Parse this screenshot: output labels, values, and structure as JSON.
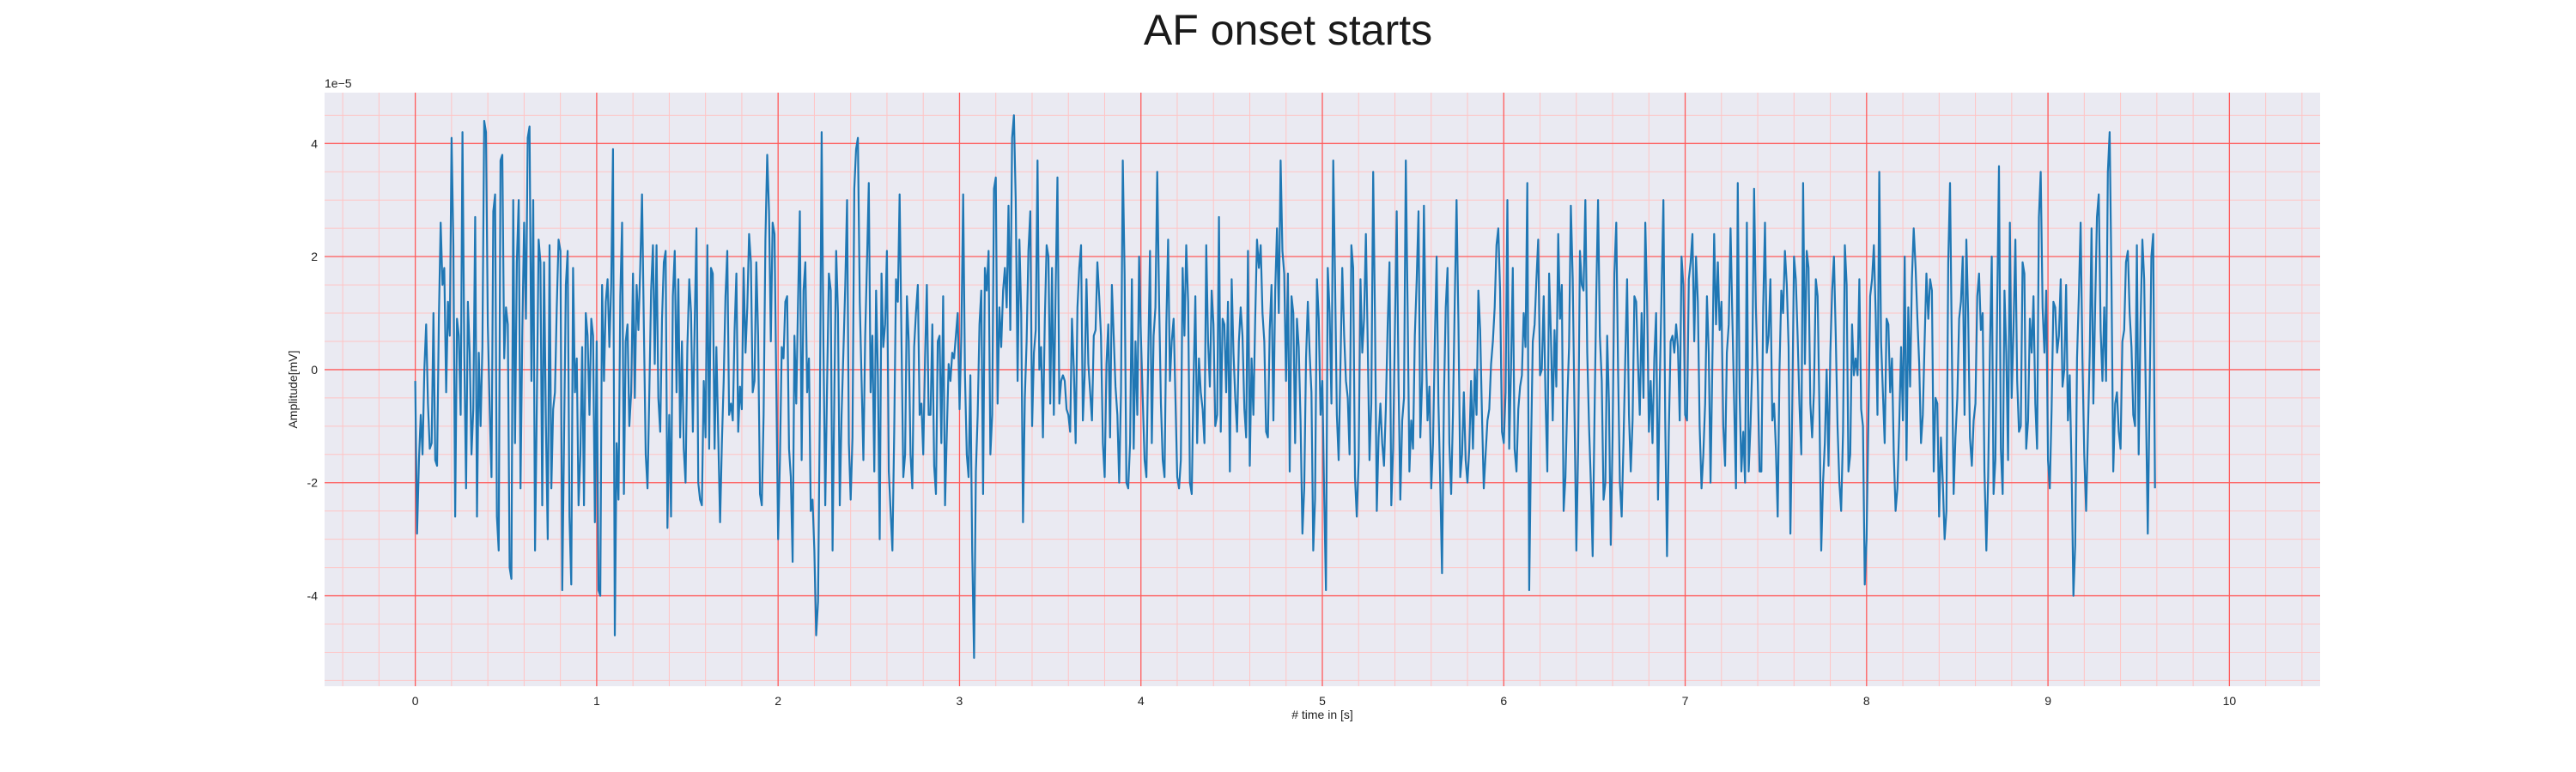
{
  "chart_data": {
    "type": "line",
    "title": "AF onset starts",
    "xlabel": "# time in [s]",
    "ylabel": "Amplitude[mV]",
    "y_offset_label": "1e−5",
    "y_scale": 1e-05,
    "xlim": [
      -0.5,
      10.5
    ],
    "ylim": [
      -5.6,
      4.9
    ],
    "xticks": [
      0,
      1,
      2,
      3,
      4,
      5,
      6,
      7,
      8,
      9,
      10
    ],
    "xtick_labels": [
      "0",
      "1",
      "2",
      "3",
      "4",
      "5",
      "6",
      "7",
      "8",
      "9",
      "10"
    ],
    "yticks": [
      -4,
      -2,
      0,
      2,
      4
    ],
    "ytick_labels": [
      "-4",
      "-2",
      "0",
      "2",
      "4"
    ],
    "grid": true,
    "minor_grid": true,
    "colors": {
      "line": "#1f77b4",
      "plot_background": "#eaeaf2",
      "major_grid": "#ff5a5a",
      "minor_grid": "#ffc4c4"
    },
    "series": [
      {
        "sampling_rate_hz": 100,
        "x_start": 0,
        "values": [
          -0.2,
          -2.9,
          -1.6,
          -0.8,
          -1.5,
          0.0,
          0.8,
          -0.6,
          -1.4,
          -1.3,
          1.0,
          -1.6,
          -1.7,
          0.9,
          2.6,
          1.5,
          1.8,
          -0.4,
          1.2,
          0.6,
          4.1,
          2.2,
          -2.6,
          0.9,
          0.6,
          -0.8,
          4.2,
          0.3,
          -2.1,
          1.2,
          0.3,
          -1.5,
          -0.7,
          2.7,
          -2.6,
          0.3,
          -1.0,
          0.4,
          4.4,
          4.2,
          0.8,
          -0.7,
          -1.9,
          2.8,
          3.1,
          -2.6,
          -3.2,
          3.7,
          3.8,
          0.2,
          1.1,
          0.8,
          -3.5,
          -3.7,
          3.0,
          -1.3,
          1.9,
          3.0,
          -2.1,
          0.7,
          2.6,
          0.9,
          4.1,
          4.3,
          -0.2,
          3.0,
          -3.2,
          -0.6,
          2.3,
          1.9,
          -2.4,
          1.9,
          -1.0,
          -3.0,
          2.2,
          -2.1,
          -0.7,
          -0.4,
          1.1,
          2.3,
          2.1,
          -3.9,
          -1.2,
          1.5,
          2.1,
          -2.6,
          -3.8,
          1.8,
          -0.4,
          0.2,
          -2.4,
          -1.5,
          0.4,
          -2.4,
          1.0,
          0.6,
          -0.8,
          0.9,
          0.6,
          -2.7,
          0.5,
          -3.9,
          -4.0,
          1.5,
          -0.2,
          1.2,
          1.6,
          0.4,
          1.5,
          3.9,
          -4.7,
          -1.3,
          -2.3,
          1.3,
          2.6,
          -2.2,
          0.5,
          0.8,
          -1.0,
          -0.4,
          1.7,
          -0.5,
          1.5,
          0.7,
          1.8,
          3.1,
          0.8,
          -1.5,
          -2.1,
          -0.4,
          1.4,
          2.2,
          0.1,
          2.2,
          -0.5,
          -1.1,
          0.9,
          1.9,
          2.1,
          -2.8,
          -0.8,
          -2.6,
          1.3,
          2.1,
          -0.4,
          1.6,
          -1.2,
          0.5,
          -1.4,
          -2.0,
          0.4,
          1.6,
          1.0,
          -1.1,
          0.8,
          2.5,
          -2.0,
          -2.3,
          -2.4,
          -0.2,
          -1.2,
          2.2,
          -1.4,
          1.8,
          1.7,
          -1.4,
          0.4,
          -1.2,
          -2.7,
          -1.3,
          -0.2,
          1.3,
          2.1,
          -0.8,
          -0.6,
          -0.9,
          0.7,
          1.7,
          -1.1,
          -0.3,
          -0.7,
          1.8,
          0.3,
          1.1,
          2.4,
          1.9,
          -0.4,
          -0.2,
          1.9,
          0.6,
          -2.2,
          -2.4,
          -0.8,
          2.3,
          3.8,
          2.8,
          0.5,
          2.6,
          2.4,
          -0.3,
          -3.0,
          -1.6,
          0.4,
          0.2,
          1.2,
          1.3,
          -1.4,
          -1.9,
          -3.4,
          0.6,
          -0.6,
          1.2,
          2.8,
          -1.6,
          1.4,
          1.9,
          -0.4,
          0.2,
          -2.5,
          -2.3,
          -3.2,
          -4.7,
          -4.1,
          -0.7,
          4.2,
          0.4,
          -2.4,
          -0.3,
          1.7,
          1.4,
          -3.2,
          -0.4,
          2.1,
          1.0,
          -2.4,
          -0.8,
          0.3,
          1.5,
          3.0,
          -1.3,
          -2.3,
          -1.2,
          3.2,
          3.9,
          4.1,
          1.2,
          -0.2,
          -1.6,
          0.6,
          1.9,
          3.3,
          -0.4,
          0.6,
          -1.8,
          1.4,
          -0.1,
          -3.0,
          1.7,
          0.4,
          0.8,
          2.1,
          -1.8,
          -2.5,
          -3.2,
          -1.1,
          1.6,
          1.2,
          3.1,
          0.6,
          -1.9,
          -1.5,
          1.3,
          0.5,
          -1.5,
          -2.1,
          0.4,
          1.0,
          1.5,
          -0.8,
          -0.6,
          -1.5,
          0.2,
          1.5,
          -0.8,
          -0.8,
          0.8,
          -1.7,
          -2.2,
          0.5,
          0.6,
          -1.3,
          1.3,
          -2.4,
          -1.1,
          0.1,
          -0.2,
          0.3,
          0.2,
          0.6,
          1.0,
          -0.7,
          0.6,
          3.1,
          -0.1,
          -1.5,
          -1.9,
          -0.1,
          -3.2,
          -5.1,
          -1.8,
          -0.8,
          0.8,
          1.4,
          -2.2,
          1.8,
          1.4,
          2.1,
          -1.5,
          -0.8,
          3.2,
          3.4,
          -0.6,
          1.1,
          0.4,
          1.4,
          1.8,
          1.1,
          2.9,
          0.7,
          4.1,
          4.5,
          3.0,
          -0.2,
          2.3,
          1.0,
          -2.7,
          -0.5,
          0.5,
          2.1,
          2.8,
          -1.0,
          0.3,
          0.7,
          3.7,
          0.0,
          0.4,
          -1.2,
          0.9,
          2.2,
          2.0,
          -0.6,
          1.8,
          -0.8,
          1.4,
          3.4,
          -0.6,
          -0.2,
          -0.1,
          -0.2,
          -0.7,
          -0.8,
          -1.1,
          0.9,
          0.0,
          -1.3,
          1.1,
          1.8,
          2.2,
          -0.9,
          -0.1,
          1.6,
          0.1,
          -0.4,
          -0.9,
          0.6,
          0.7,
          1.9,
          1.3,
          0.6,
          -1.3,
          -1.9,
          0.1,
          0.8,
          -1.2,
          1.5,
          0.6,
          -0.3,
          -0.8,
          -2.0,
          -0.4,
          3.7,
          1.7,
          -2.0,
          -2.1,
          -1.3,
          1.6,
          -1.4,
          0.5,
          -0.8,
          2.0,
          0.6,
          -0.5,
          -1.6,
          -1.9,
          0.2,
          2.1,
          -1.3,
          0.6,
          1.1,
          3.5,
          1.2,
          -0.6,
          -1.6,
          -1.9,
          0.8,
          2.3,
          -0.2,
          0.5,
          0.9,
          -0.5,
          -1.9,
          -2.1,
          -1.6,
          1.8,
          0.6,
          2.2,
          1.2,
          -2.0,
          -2.2,
          -0.2,
          1.3,
          -1.3,
          0.2,
          -0.4,
          -0.7,
          -1.3,
          2.2,
          0.5,
          -0.3,
          1.4,
          0.8,
          -1.0,
          -0.8,
          2.7,
          -1.1,
          0.9,
          0.8,
          -0.4,
          1.2,
          -1.8,
          1.6,
          0.3,
          -0.5,
          -1.1,
          0.5,
          1.1,
          0.6,
          -0.7,
          -1.2,
          2.1,
          -1.7,
          0.2,
          -0.8,
          0.9,
          2.3,
          1.8,
          2.2,
          1.0,
          0.5,
          -1.1,
          -1.2,
          0.7,
          1.5,
          -0.9,
          1.4,
          2.5,
          1.0,
          3.7,
          2.1,
          1.7,
          -0.2,
          1.7,
          -1.8,
          1.3,
          1.0,
          -1.3,
          0.9,
          0.4,
          -0.9,
          -2.9,
          -2.1,
          0.2,
          1.2,
          0.3,
          -0.4,
          -3.2,
          -2.3,
          1.6,
          0.9,
          -0.8,
          -0.2,
          -2.2,
          -3.9,
          1.8,
          1.0,
          -0.6,
          3.7,
          1.6,
          -0.8,
          -1.6,
          0.1,
          1.8,
          0.6,
          -0.2,
          -0.5,
          -1.5,
          2.2,
          1.8,
          -1.9,
          -2.6,
          -1.6,
          1.6,
          0.3,
          0.9,
          2.4,
          0.5,
          -1.6,
          -0.6,
          3.5,
          0.9,
          -2.5,
          -1.2,
          -0.6,
          -1.3,
          -1.7,
          -0.7,
          0.8,
          1.9,
          -2.4,
          -1.4,
          0.7,
          2.8,
          -0.2,
          -2.3,
          -0.9,
          -0.5,
          3.7,
          1.1,
          -1.8,
          -0.9,
          -1.4,
          0.6,
          1.6,
          2.8,
          -1.2,
          -0.2,
          2.9,
          0.6,
          -0.9,
          -0.3,
          -2.1,
          -1.3,
          0.5,
          2.0,
          -0.6,
          -2.0,
          -3.6,
          -0.5,
          1.1,
          1.8,
          -1.3,
          -2.2,
          -0.8,
          1.2,
          3.0,
          0.8,
          -1.9,
          -1.5,
          -0.4,
          -1.6,
          -2.0,
          -1.4,
          -0.2,
          -1.4,
          0.0,
          -0.8,
          1.4,
          0.7,
          -0.8,
          -2.1,
          -1.5,
          -0.9,
          -0.7,
          0.1,
          0.5,
          1.1,
          2.2,
          2.5,
          1.4,
          -1.1,
          -1.3,
          -0.4,
          3.0,
          -1.4,
          0.0,
          1.8,
          -1.4,
          -1.8,
          -0.7,
          -0.3,
          -0.1,
          1.0,
          0.4,
          3.3,
          -3.9,
          -1.4,
          0.5,
          0.8,
          1.6,
          2.3,
          -0.1,
          0.0,
          1.3,
          -0.5,
          -1.8,
          1.7,
          0.6,
          -0.9,
          0.7,
          -0.3,
          2.4,
          0.9,
          1.5,
          -2.5,
          -1.9,
          -0.6,
          0.4,
          2.9,
          1.6,
          -0.8,
          -3.2,
          -1.4,
          2.1,
          1.5,
          1.4,
          3.0,
          0.3,
          -1.0,
          -2.0,
          -3.3,
          -0.9,
          1.3,
          3.0,
          0.6,
          -0.2,
          -2.3,
          -2.0,
          0.6,
          -0.6,
          -3.1,
          -1.2,
          1.7,
          2.6,
          0.0,
          -2.0,
          -2.6,
          -1.3,
          0.2,
          1.6,
          -0.8,
          -1.8,
          -0.9,
          1.3,
          1.2,
          0.1,
          -0.8,
          1.0,
          -0.5,
          2.6,
          1.2,
          -1.1,
          -0.2,
          -1.3,
          0.2,
          1.0,
          -2.3,
          -0.2,
          1.4,
          3.0,
          -0.9,
          -3.3,
          -1.1,
          0.5,
          0.6,
          0.3,
          0.8,
          0.4,
          -0.9,
          2.0,
          1.5,
          -0.8,
          -0.9,
          1.6,
          1.9,
          2.4,
          0.5,
          2.0,
          1.2,
          -1.0,
          -2.1,
          -1.5,
          -0.6,
          1.3,
          0.3,
          -2.0,
          0.1,
          2.4,
          0.8,
          1.9,
          0.7,
          1.2,
          -1.0,
          -1.7,
          0.3,
          0.8,
          2.5,
          0.9,
          -0.6,
          -2.1,
          3.3,
          -0.4,
          -1.8,
          -1.1,
          -2.0,
          2.6,
          -1.8,
          -1.0,
          0.1,
          3.2,
          1.1,
          -0.2,
          -1.8,
          -1.8,
          1.1,
          2.6,
          0.3,
          0.6,
          1.6,
          -0.9,
          -0.6,
          -1.4,
          -2.6,
          0.0,
          1.4,
          1.0,
          2.1,
          1.5,
          0.4,
          -2.9,
          -0.7,
          2.0,
          1.6,
          0.6,
          -0.6,
          -1.5,
          3.3,
          0.1,
          2.1,
          1.8,
          -0.6,
          -1.2,
          -0.4,
          1.6,
          1.3,
          -0.7,
          -3.2,
          -2.0,
          -1.3,
          0.0,
          -1.7,
          0.3,
          1.4,
          2.0,
          0.6,
          -1.0,
          -2.0,
          -2.5,
          -1.1,
          2.2,
          1.5,
          -1.8,
          -1.5,
          0.8,
          -0.1,
          0.2,
          -0.1,
          1.6,
          -0.7,
          -1.0,
          -3.8,
          -3.0,
          -0.9,
          1.3,
          1.6,
          2.2,
          1.0,
          -0.8,
          3.5,
          0.5,
          -0.4,
          -1.3,
          0.9,
          0.8,
          -0.4,
          0.2,
          -1.5,
          -2.5,
          -2.1,
          -1.0,
          0.4,
          -0.9,
          2.0,
          -1.6,
          1.1,
          -0.3,
          1.6,
          2.5,
          1.8,
          0.9,
          0.1,
          -1.3,
          -0.8,
          0.5,
          1.7,
          0.9,
          1.6,
          1.4,
          -1.8,
          -0.5,
          -0.6,
          -2.6,
          -1.2,
          -2.0,
          -3.0,
          -2.5,
          1.9,
          3.3,
          0.4,
          -2.2,
          -1.2,
          -0.5,
          0.9,
          1.2,
          2.0,
          -0.8,
          2.3,
          1.0,
          -1.2,
          -1.7,
          -0.9,
          -0.6,
          1.3,
          1.7,
          0.7,
          1.0,
          -1.8,
          -3.2,
          -1.9,
          0.4,
          2.0,
          -2.2,
          -1.6,
          1.1,
          3.6,
          -1.4,
          -2.2,
          1.4,
          0.3,
          -1.6,
          2.6,
          -0.5,
          0.7,
          2.3,
          -0.2,
          -1.1,
          -1.0,
          1.9,
          1.7,
          -1.4,
          -0.9,
          0.9,
          0.3,
          1.3,
          -0.6,
          -1.4,
          2.7,
          3.5,
          1.1,
          0.3,
          1.4,
          -1.6,
          -2.1,
          -0.7,
          1.2,
          1.1,
          0.3,
          0.6,
          1.6,
          -0.3,
          0.0,
          1.5,
          -0.9,
          -0.1,
          -1.8,
          -4.0,
          -3.1,
          0.2,
          1.3,
          2.6,
          0.2,
          -1.5,
          -2.5,
          -1.1,
          0.3,
          2.5,
          -0.6,
          1.1,
          2.7,
          3.1,
          0.7,
          -0.2,
          1.1,
          -0.2,
          3.5,
          4.2,
          1.6,
          -1.8,
          -0.6,
          -0.4,
          -1.1,
          -1.4,
          0.5,
          0.7,
          1.9,
          2.1,
          1.0,
          0.4,
          -0.8,
          -1.0,
          2.2,
          -1.5,
          0.8,
          2.3,
          1.6,
          -0.7,
          -2.9,
          -0.5,
          2.0,
          2.4,
          -2.1
        ]
      }
    ]
  }
}
